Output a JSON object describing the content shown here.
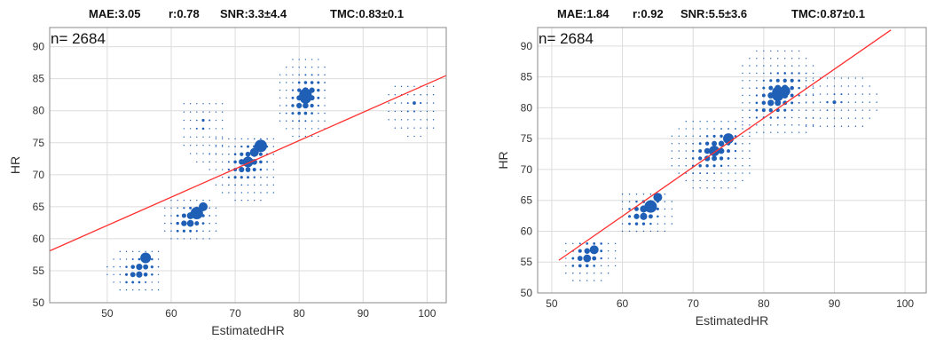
{
  "chart_data": [
    {
      "type": "scatter",
      "title_items": [
        "MAE:3.05",
        "r:0.78",
        "SNR:3.3±4.4",
        "TMC:0.83±0.1"
      ],
      "annotation": "n= 2684",
      "xlabel": "EstimatedHR",
      "ylabel": "HR",
      "xlim": [
        41,
        103
      ],
      "ylim": [
        50,
        93
      ],
      "xticks": [
        50,
        60,
        70,
        80,
        90,
        100
      ],
      "yticks": [
        50,
        55,
        60,
        65,
        70,
        75,
        80,
        85,
        90
      ],
      "grid": true,
      "marker_color": "#1f5fb5",
      "fit_color": "#ff3030",
      "fit_line": {
        "x": [
          41,
          103
        ],
        "y": [
          58.1,
          85.5
        ]
      },
      "clusters": [
        {
          "x": [
            50,
            58
          ],
          "y": [
            52,
            58
          ],
          "dx": 1,
          "dy": 1.2,
          "cx": 55,
          "cy": 55,
          "peak": 6
        },
        {
          "x": [
            59,
            67
          ],
          "y": [
            60,
            66
          ],
          "dx": 1,
          "dy": 1.2,
          "cx": 63,
          "cy": 63,
          "peak": 6.5
        },
        {
          "x": [
            66,
            76
          ],
          "y": [
            66,
            76
          ],
          "dx": 1,
          "dy": 1.2,
          "cx": 72,
          "cy": 72,
          "peak": 6
        },
        {
          "x": [
            77,
            84
          ],
          "y": [
            76,
            88
          ],
          "dx": 1,
          "dy": 1.2,
          "cx": 81,
          "cy": 82,
          "peak": 6.5
        },
        {
          "x": [
            62,
            68
          ],
          "y": [
            72,
            82
          ],
          "dx": 1,
          "dy": 1.3,
          "cx": 65,
          "cy": 78,
          "peak": 2.2
        },
        {
          "x": [
            94,
            101
          ],
          "y": [
            76,
            84
          ],
          "dx": 1,
          "dy": 1.3,
          "cx": 98,
          "cy": 81,
          "peak": 2.2
        }
      ],
      "big_points": [
        {
          "x": 56,
          "y": 57,
          "r": 6
        },
        {
          "x": 64,
          "y": 64,
          "r": 7
        },
        {
          "x": 65,
          "y": 65,
          "r": 5
        },
        {
          "x": 74,
          "y": 74.5,
          "r": 7
        },
        {
          "x": 73,
          "y": 73.5,
          "r": 5
        },
        {
          "x": 81,
          "y": 82.5,
          "r": 7
        }
      ]
    },
    {
      "type": "scatter",
      "title_items": [
        "MAE:1.84",
        "r:0.92",
        "SNR:5.5±3.6",
        "TMC:0.87±0.1"
      ],
      "annotation": "n= 2684",
      "xlabel": "EstimatedHR",
      "ylabel": "HR",
      "xlim": [
        48,
        103
      ],
      "ylim": [
        50,
        93
      ],
      "xticks": [
        50,
        60,
        70,
        80,
        90,
        100
      ],
      "yticks": [
        50,
        55,
        60,
        65,
        70,
        75,
        80,
        85,
        90
      ],
      "grid": true,
      "marker_color": "#1f5fb5",
      "fit_color": "#ff3030",
      "fit_line": {
        "x": [
          51,
          98
        ],
        "y": [
          55.3,
          92.6
        ]
      },
      "clusters": [
        {
          "x": [
            52,
            59
          ],
          "y": [
            52,
            59
          ],
          "dx": 1,
          "dy": 1.2,
          "cx": 55,
          "cy": 56,
          "peak": 6
        },
        {
          "x": [
            60,
            67
          ],
          "y": [
            60,
            67
          ],
          "dx": 1,
          "dy": 1.2,
          "cx": 63,
          "cy": 63,
          "peak": 6.5
        },
        {
          "x": [
            67,
            78
          ],
          "y": [
            67,
            78
          ],
          "dx": 1,
          "dy": 1.2,
          "cx": 73,
          "cy": 73,
          "peak": 6
        },
        {
          "x": [
            77,
            87
          ],
          "y": [
            76,
            90
          ],
          "dx": 1,
          "dy": 1.2,
          "cx": 82,
          "cy": 82,
          "peak": 6.5
        },
        {
          "x": [
            86,
            96
          ],
          "y": [
            77,
            85
          ],
          "dx": 1,
          "dy": 1.3,
          "cx": 90,
          "cy": 81,
          "peak": 2.2
        }
      ],
      "big_points": [
        {
          "x": 56,
          "y": 57,
          "r": 5
        },
        {
          "x": 64,
          "y": 64,
          "r": 7
        },
        {
          "x": 65,
          "y": 65.5,
          "r": 5
        },
        {
          "x": 75,
          "y": 75,
          "r": 6
        },
        {
          "x": 82,
          "y": 82.5,
          "r": 6.5
        },
        {
          "x": 83,
          "y": 82.7,
          "r": 6
        }
      ]
    }
  ]
}
